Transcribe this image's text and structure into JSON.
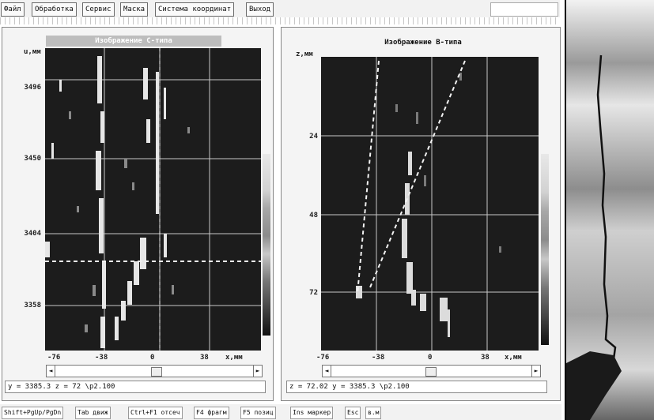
{
  "menu": {
    "items": [
      "Файл",
      "Обработка",
      "Сервис",
      "Маска",
      "Система координат",
      "Выход"
    ]
  },
  "panel_c": {
    "title": "Изображение С-типа",
    "y_axis_unit": "u,мм",
    "y_ticks": [
      "3496",
      "3450",
      "3404",
      "3358"
    ],
    "x_ticks": [
      "-76",
      "-38",
      "0",
      "38"
    ],
    "x_axis_unit": "x,мм",
    "coord_text": "y = 3385.3  z = 72      \\p2.100"
  },
  "panel_b": {
    "title": "Изображение В-типа",
    "y_axis_unit": "z,мм",
    "y_ticks": [
      "24",
      "48",
      "72"
    ],
    "x_ticks": [
      "-76",
      "-38",
      "0",
      "38"
    ],
    "x_axis_unit": "x,мм",
    "coord_text": "z = 72.02   y = 3385.3  \\p2.100"
  },
  "statusbar": {
    "items": [
      "Shift+PgUp/PgDn",
      "Tab движ",
      "Ctrl+F1 отсеч",
      "F4 фрагм",
      "F5 позиц",
      "Ins маркер",
      "Esc",
      "в.м"
    ]
  },
  "colors": {
    "plot_bg": "#1c1c1c",
    "title_c_bg": "#bdbdbd",
    "frame": "#888888",
    "grid": "#bdbdbd"
  },
  "icons": {
    "scroll_left": "◄",
    "scroll_right": "►"
  }
}
